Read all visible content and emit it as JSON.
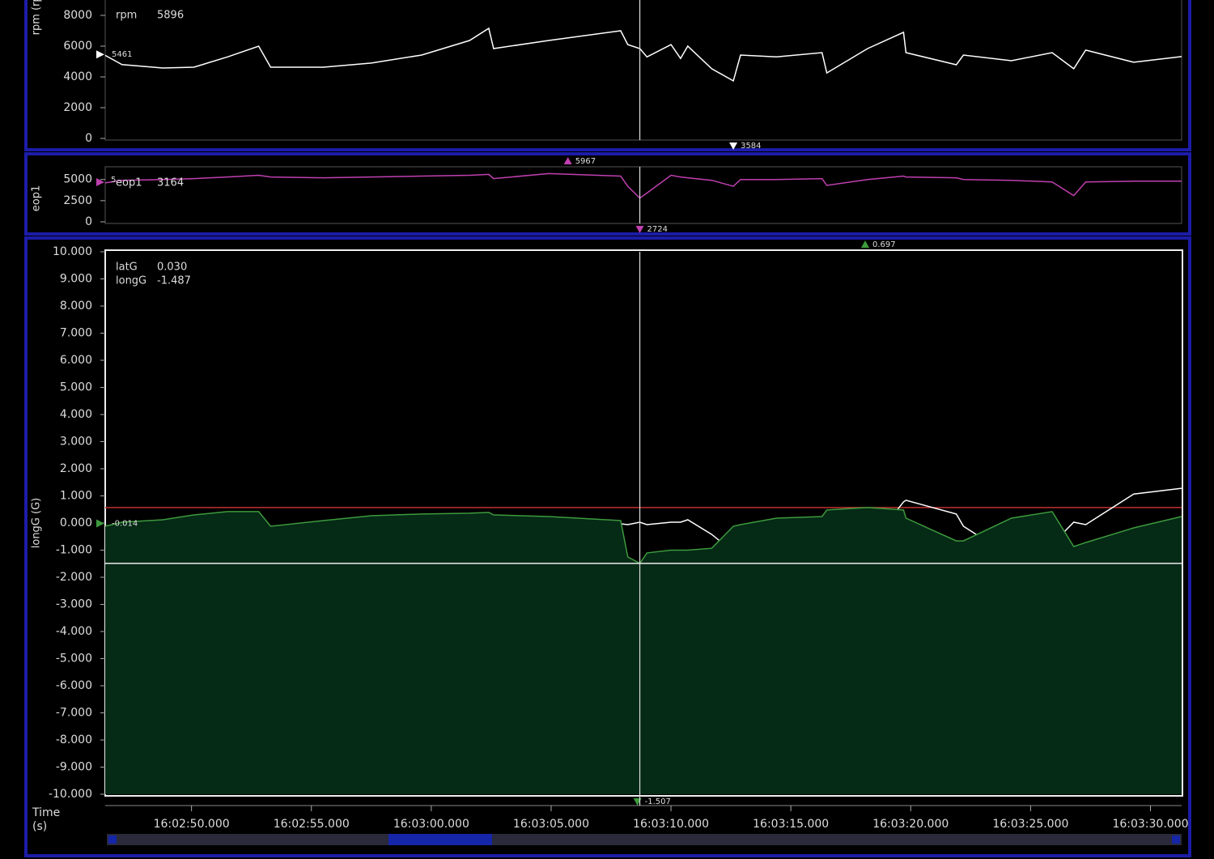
{
  "x_axis": {
    "label": "Time (s)",
    "xlim": [
      57766.4,
      57811.3
    ],
    "xticks": [
      {
        "value": 57770,
        "label": "16:02:50.000"
      },
      {
        "value": 57775,
        "label": "16:02:55.000"
      },
      {
        "value": 57780,
        "label": "16:03:00.000"
      },
      {
        "value": 57785,
        "label": "16:03:05.000"
      },
      {
        "value": 57790,
        "label": "16:03:10.000"
      },
      {
        "value": 57795,
        "label": "16:03:15.000"
      },
      {
        "value": 57800,
        "label": "16:03:20.000"
      },
      {
        "value": 57805,
        "label": "16:03:25.000"
      },
      {
        "value": 57810,
        "label": "16:03:30.000"
      }
    ],
    "x": [
      57766.4,
      57767.1,
      57768.8,
      57770.1,
      57771.5,
      57772.8,
      57773.3,
      57775.5,
      57777.5,
      57779.6,
      57781.6,
      57782.4,
      57782.6,
      57784.9,
      57787.9,
      57788.2,
      57788.7,
      57789.0,
      57790.0,
      57790.4,
      57790.7,
      57791.7,
      57792.6,
      57792.9,
      57794.4,
      57796.3,
      57796.5,
      57798.2,
      57799.7,
      57799.8,
      57801.9,
      57802.2,
      57804.2,
      57805.9,
      57806.8,
      57807.3,
      57809.3,
      57811.3
    ],
    "cursor": 57788.7
  },
  "chart_data": [
    {
      "type": "line",
      "ylabel": "rpm (rpm)",
      "ylim": [
        0,
        9000
      ],
      "yticks": [
        0,
        2000,
        4000,
        6000,
        8000
      ],
      "series": [
        {
          "name": "rpm",
          "color": "#ffffff",
          "cursor": {
            "value": 5896,
            "label": "5896"
          },
          "values": [
            5400,
            4800,
            4580,
            4630,
            5300,
            6000,
            4630,
            4630,
            4900,
            5420,
            6370,
            7160,
            5840,
            6370,
            7000,
            6100,
            5840,
            5300,
            6100,
            5200,
            6000,
            4530,
            3740,
            5420,
            5300,
            5580,
            4260,
            5840,
            6900,
            5580,
            4790,
            5420,
            5050,
            5580,
            4530,
            5740,
            4950,
            5320
          ],
          "left": {
            "value": 5461
          },
          "min": {
            "x": 57792.6,
            "value": 3584
          }
        }
      ]
    },
    {
      "type": "line",
      "ylabel": "eop1",
      "ylim": [
        0,
        6500
      ],
      "yticks": [
        0,
        2500,
        5000
      ],
      "series": [
        {
          "name": "eop1",
          "color": "#c040b0",
          "cursor": {
            "value": 3164,
            "label": "3164"
          },
          "left_label": "5",
          "values": [
            4600,
            4900,
            5000,
            5100,
            5300,
            5500,
            5300,
            5200,
            5300,
            5400,
            5500,
            5600,
            5100,
            5700,
            5400,
            4200,
            2800,
            3400,
            5500,
            5300,
            5200,
            4900,
            4200,
            5000,
            5000,
            5100,
            4300,
            5000,
            5400,
            5300,
            5200,
            5000,
            4900,
            4700,
            3100,
            4700,
            4800,
            4800
          ],
          "max": {
            "x": 57785.7,
            "value": 5967
          },
          "min": {
            "x": 57788.7,
            "value": 2724
          }
        }
      ]
    },
    {
      "type": "line",
      "ylabel": "longG (G)",
      "ylim": [
        -10,
        10
      ],
      "yticks": [
        {
          "value": -10,
          "label": "-10.000"
        },
        {
          "value": -9,
          "label": "-9.000"
        },
        {
          "value": -8,
          "label": "-8.000"
        },
        {
          "value": -7,
          "label": "-7.000"
        },
        {
          "value": -6,
          "label": "-6.000"
        },
        {
          "value": -5,
          "label": "-5.000"
        },
        {
          "value": -4,
          "label": "-4.000"
        },
        {
          "value": -3,
          "label": "-3.000"
        },
        {
          "value": -2,
          "label": "-2.000"
        },
        {
          "value": -1,
          "label": "-1.000"
        },
        {
          "value": 0,
          "label": "0.000"
        },
        {
          "value": 1,
          "label": "1.000"
        },
        {
          "value": 2,
          "label": "2.000"
        },
        {
          "value": 3,
          "label": "3.000"
        },
        {
          "value": 4,
          "label": "4.000"
        },
        {
          "value": 5,
          "label": "5.000"
        },
        {
          "value": 6,
          "label": "6.000"
        },
        {
          "value": 7,
          "label": "7.000"
        },
        {
          "value": 8,
          "label": "8.000"
        },
        {
          "value": 9,
          "label": "9.000"
        },
        {
          "value": 10,
          "label": "10.000"
        }
      ],
      "reference_line": {
        "value": 0.57,
        "color": "#c03030"
      },
      "series": [
        {
          "name": "latG",
          "color": "#ffffff",
          "cursor": {
            "value": 0.03,
            "label": "0.030"
          },
          "values": [
            -0.57,
            -0.4,
            -1.07,
            -1.0,
            -0.78,
            -0.36,
            -0.66,
            -0.96,
            -1.0,
            -0.87,
            -0.06,
            0.18,
            0.09,
            0.03,
            -0.03,
            -0.06,
            0.03,
            -0.06,
            0.03,
            0.03,
            0.12,
            -0.42,
            -1.07,
            -1.16,
            -1.16,
            -1.16,
            -1.1,
            -0.9,
            0.78,
            0.84,
            0.33,
            -0.12,
            -1.25,
            -0.78,
            0.03,
            -0.06,
            1.07,
            1.28
          ]
        },
        {
          "name": "longG",
          "color": "#3d9a3d",
          "fill_color": "#052a16",
          "cursor": {
            "value": -1.487,
            "label": "-1.487"
          },
          "values": [
            -0.12,
            0.03,
            0.12,
            0.3,
            0.42,
            0.42,
            -0.12,
            0.09,
            0.27,
            0.33,
            0.36,
            0.39,
            0.3,
            0.24,
            0.09,
            -1.25,
            -1.487,
            -1.1,
            -1.0,
            -1.0,
            -1.0,
            -0.93,
            -0.12,
            -0.06,
            0.18,
            0.24,
            0.48,
            0.57,
            0.48,
            0.18,
            -0.66,
            -0.66,
            0.18,
            0.42,
            -0.87,
            -0.72,
            -0.18,
            0.24
          ],
          "left": {
            "value": -0.014
          },
          "max": {
            "x": 57798.1,
            "value": 0.697
          },
          "min": {
            "x": 57788.6,
            "value": -1.507
          }
        }
      ]
    }
  ]
}
